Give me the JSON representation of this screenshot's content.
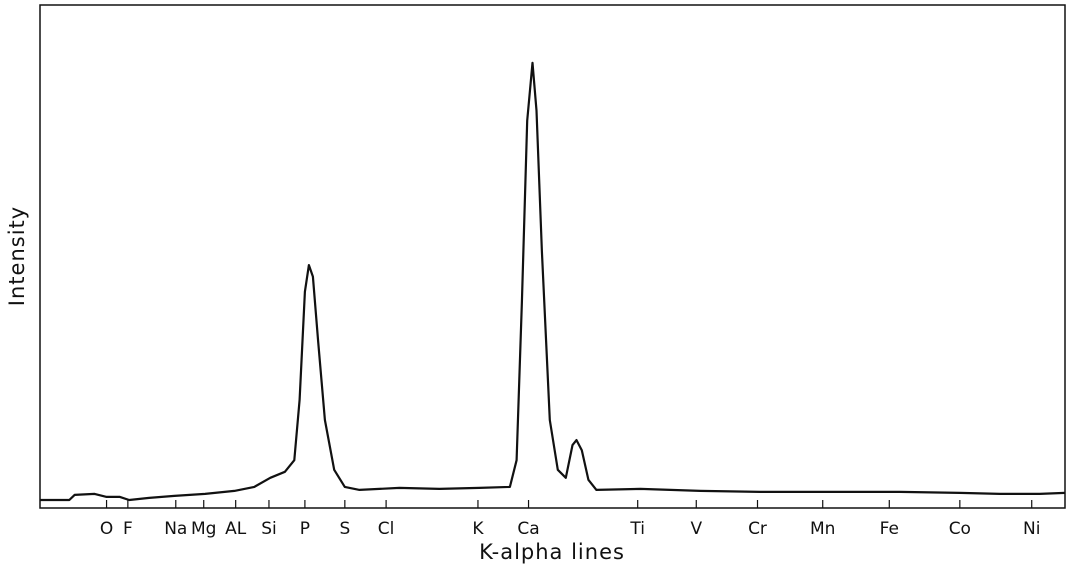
{
  "chart_data": {
    "type": "line",
    "x_label": "K-alpha lines",
    "y_label": "Intensity",
    "xlim": [
      0.02,
      7.72
    ],
    "ylim": [
      0,
      100
    ],
    "xticks": [
      {
        "value": 0.52,
        "label": "O"
      },
      {
        "value": 0.68,
        "label": "F"
      },
      {
        "value": 1.04,
        "label": "Na"
      },
      {
        "value": 1.25,
        "label": "Mg"
      },
      {
        "value": 1.49,
        "label": "AL"
      },
      {
        "value": 1.74,
        "label": "Si"
      },
      {
        "value": 2.01,
        "label": "P"
      },
      {
        "value": 2.31,
        "label": "S"
      },
      {
        "value": 2.62,
        "label": "Cl"
      },
      {
        "value": 3.31,
        "label": "K"
      },
      {
        "value": 3.69,
        "label": "Ca"
      },
      {
        "value": 4.51,
        "label": "Ti"
      },
      {
        "value": 4.95,
        "label": "V"
      },
      {
        "value": 5.41,
        "label": "Cr"
      },
      {
        "value": 5.9,
        "label": "Mn"
      },
      {
        "value": 6.4,
        "label": "Fe"
      },
      {
        "value": 6.93,
        "label": "Co"
      },
      {
        "value": 7.47,
        "label": "Ni"
      }
    ],
    "x": [
      0.02,
      0.24,
      0.28,
      0.43,
      0.52,
      0.62,
      0.69,
      0.84,
      1.03,
      1.26,
      1.48,
      1.63,
      1.75,
      1.86,
      1.93,
      1.97,
      2.01,
      2.04,
      2.07,
      2.11,
      2.16,
      2.23,
      2.31,
      2.42,
      2.72,
      3.02,
      3.32,
      3.55,
      3.6,
      3.64,
      3.68,
      3.72,
      3.75,
      3.79,
      3.85,
      3.91,
      3.97,
      4.02,
      4.05,
      4.09,
      4.14,
      4.2,
      4.53,
      4.98,
      5.43,
      5.96,
      6.48,
      6.93,
      7.23,
      7.53,
      7.72
    ],
    "series": [
      {
        "color": "#111111",
        "values": [
          1.6,
          1.6,
          2.6,
          2.8,
          2.2,
          2.2,
          1.6,
          2.0,
          2.4,
          2.8,
          3.4,
          4.2,
          6.0,
          7.2,
          9.5,
          21.5,
          43,
          48.3,
          46,
          33,
          17.5,
          7.6,
          4.2,
          3.6,
          4.0,
          3.8,
          4.0,
          4.2,
          9.5,
          41,
          77,
          88.5,
          79,
          51,
          17.5,
          7.6,
          6.0,
          12.5,
          13.5,
          11.5,
          5.6,
          3.6,
          3.8,
          3.4,
          3.2,
          3.2,
          3.2,
          3.0,
          2.8,
          2.8,
          3.0
        ]
      }
    ]
  }
}
